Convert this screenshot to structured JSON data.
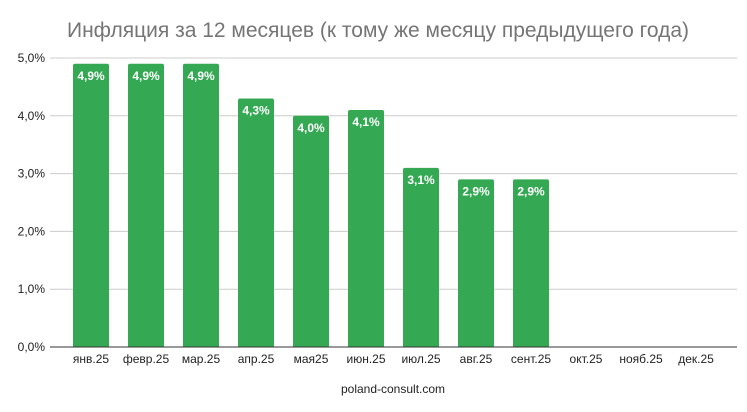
{
  "chart_data": {
    "type": "bar",
    "title": "Инфляция за 12 месяцев (к тому же месяцу предыдущего года)",
    "xlabel": "poland-consult.com",
    "ylabel": "",
    "categories": [
      "янв.25",
      "февр.25",
      "мар.25",
      "апр.25",
      "мая25",
      "июн.25",
      "июл.25",
      "авг.25",
      "сент.25",
      "окт.25",
      "нояб.25",
      "дек.25"
    ],
    "values": [
      4.9,
      4.9,
      4.9,
      4.3,
      4.0,
      4.1,
      3.1,
      2.9,
      2.9,
      null,
      null,
      null
    ],
    "data_labels": [
      "4,9%",
      "4,9%",
      "4,9%",
      "4,3%",
      "4,0%",
      "4,1%",
      "3,1%",
      "2,9%",
      "2,9%",
      "",
      "",
      ""
    ],
    "ylim": [
      0,
      5
    ],
    "yticks": [
      0,
      1,
      2,
      3,
      4,
      5
    ],
    "ytick_labels": [
      "0,0%",
      "1,0%",
      "2,0%",
      "3,0%",
      "4,0%",
      "5,0%"
    ],
    "grid": true,
    "legend": "none",
    "bar_color": "#34a853"
  }
}
